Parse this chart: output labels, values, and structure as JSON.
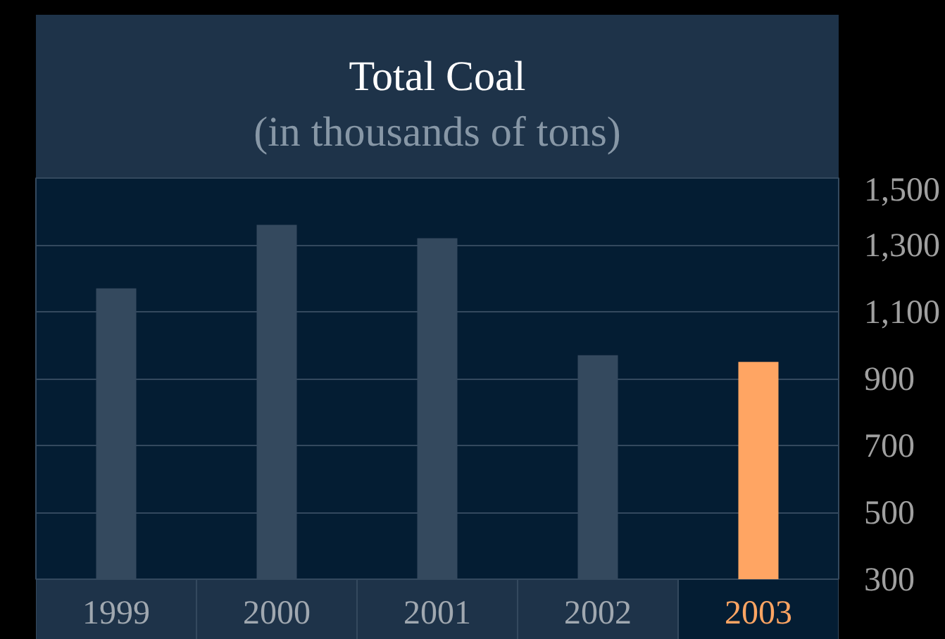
{
  "chart_data": {
    "type": "bar",
    "title": "Total Coal",
    "subtitle": "(in thousands of tons)",
    "categories": [
      "1999",
      "2000",
      "2001",
      "2002",
      "2003"
    ],
    "values": [
      1170,
      1360,
      1320,
      970,
      950
    ],
    "colors": [
      "#34495e",
      "#34495e",
      "#34495e",
      "#34495e",
      "#ffa563"
    ],
    "ylim": [
      300,
      1500
    ],
    "yticks": [
      {
        "value": 300,
        "label": "300"
      },
      {
        "value": 500,
        "label": "500"
      },
      {
        "value": 700,
        "label": "700"
      },
      {
        "value": 900,
        "label": "900"
      },
      {
        "value": 1100,
        "label": "1,100"
      },
      {
        "value": 1300,
        "label": "1,300"
      },
      {
        "value": 1500,
        "label": "1,500"
      }
    ],
    "grid": "y"
  }
}
